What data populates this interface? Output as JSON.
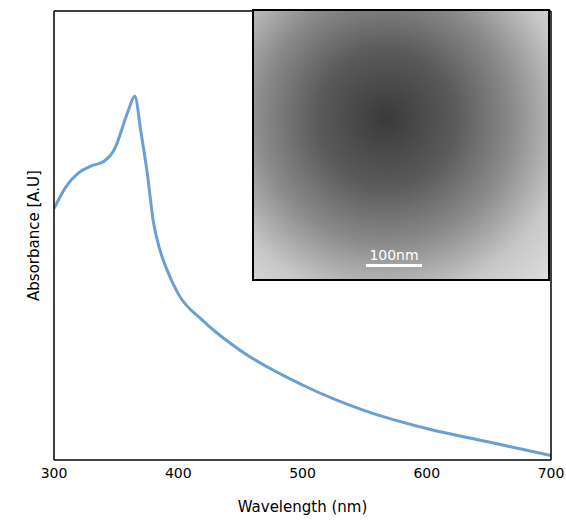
{
  "chart_data": {
    "type": "line",
    "x_label": "Wavelength (nm)",
    "y_label": "Absorbance [A.U]",
    "x": [
      300,
      310,
      320,
      330,
      340,
      350,
      355,
      360,
      365,
      370,
      375,
      380,
      385,
      390,
      400,
      420,
      450,
      500,
      550,
      600,
      650,
      700
    ],
    "values": [
      0.56,
      0.61,
      0.64,
      0.655,
      0.665,
      0.7,
      0.74,
      0.78,
      0.81,
      0.73,
      0.64,
      0.53,
      0.47,
      0.43,
      0.37,
      0.31,
      0.244,
      0.167,
      0.11,
      0.07,
      0.04,
      0.01
    ],
    "color": "#6a9fd4",
    "xlim": [
      300,
      700
    ],
    "xticks": [
      300,
      400,
      500,
      600,
      700
    ],
    "ylim": [
      0,
      1
    ],
    "yticks": [],
    "grid": false,
    "tick_labels": "x",
    "annotations": [
      "100nm"
    ]
  }
}
